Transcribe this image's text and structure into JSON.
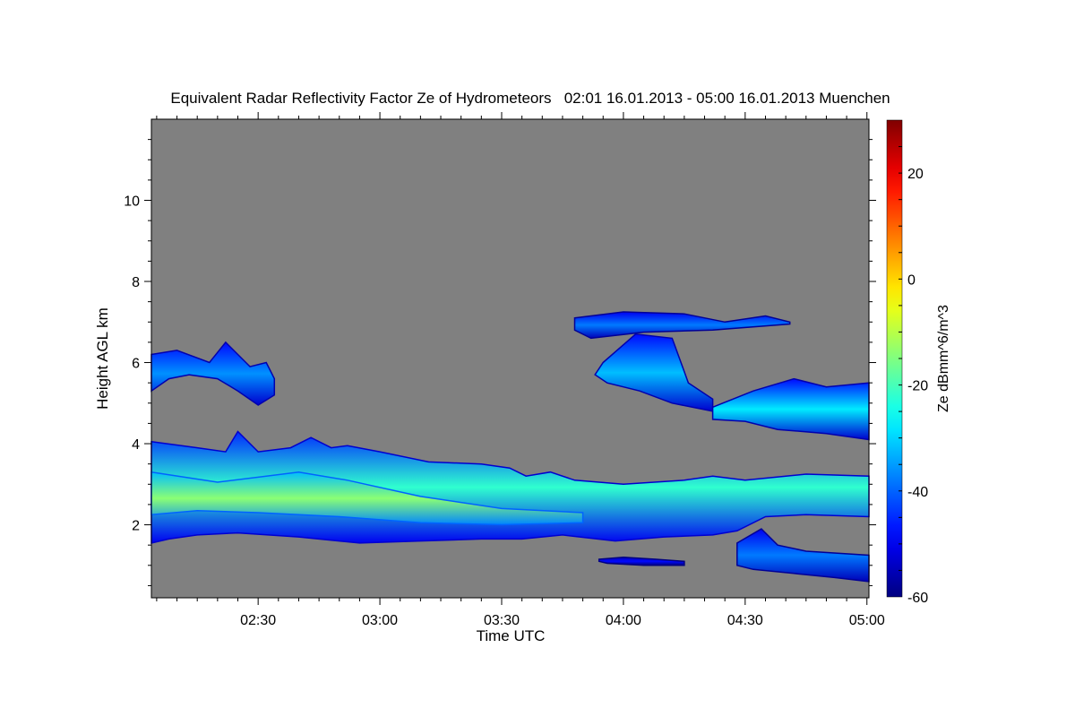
{
  "chart_data": {
    "type": "heatmap",
    "title": "Equivalent Radar Reflectivity Factor Ze of Hydrometeors   02:01 16.01.2013 - 05:00 16.01.2013 Muenchen",
    "xlabel": "Time UTC",
    "ylabel": "Height AGL km",
    "x_unit": "minutes since 00:00 UTC",
    "xlim": [
      123.7,
      300.5
    ],
    "ylim": [
      0.2,
      12.0
    ],
    "x_ticks": [
      {
        "v": 150,
        "label": "02:30"
      },
      {
        "v": 180,
        "label": "03:00"
      },
      {
        "v": 210,
        "label": "03:30"
      },
      {
        "v": 240,
        "label": "04:00"
      },
      {
        "v": 270,
        "label": "04:30"
      },
      {
        "v": 300,
        "label": "05:00"
      }
    ],
    "y_ticks": [
      {
        "v": 2,
        "label": "2"
      },
      {
        "v": 4,
        "label": "4"
      },
      {
        "v": 6,
        "label": "6"
      },
      {
        "v": 8,
        "label": "8"
      },
      {
        "v": 10,
        "label": "10"
      }
    ],
    "background_no_signal": "#808080",
    "colorbar": {
      "label": "Ze dBmm^6/m^3",
      "range": [
        -60,
        30
      ],
      "ticks": [
        {
          "v": -60,
          "label": "-60"
        },
        {
          "v": -40,
          "label": "-40"
        },
        {
          "v": -20,
          "label": "-20"
        },
        {
          "v": 0,
          "label": "0"
        },
        {
          "v": 20,
          "label": "20"
        }
      ],
      "colormap": "jet"
    },
    "regions": [
      {
        "name": "lower-main-layer",
        "ze_edge": -45,
        "ze_core": -22,
        "top": [
          [
            123.7,
            4.05
          ],
          [
            135,
            3.9
          ],
          [
            142,
            3.8
          ],
          [
            145,
            4.3
          ],
          [
            150,
            3.8
          ],
          [
            158,
            3.9
          ],
          [
            163,
            4.15
          ],
          [
            168,
            3.9
          ],
          [
            172,
            3.95
          ],
          [
            180,
            3.8
          ],
          [
            192,
            3.55
          ],
          [
            205,
            3.5
          ],
          [
            212,
            3.4
          ],
          [
            216,
            3.2
          ],
          [
            222,
            3.3
          ],
          [
            228,
            3.1
          ],
          [
            240,
            3.0
          ],
          [
            255,
            3.1
          ],
          [
            262,
            3.2
          ],
          [
            270,
            3.1
          ],
          [
            285,
            3.25
          ],
          [
            300.5,
            3.2
          ]
        ],
        "bottom": [
          [
            300.5,
            2.2
          ],
          [
            285,
            2.25
          ],
          [
            275,
            2.2
          ],
          [
            268,
            1.85
          ],
          [
            262,
            1.75
          ],
          [
            250,
            1.7
          ],
          [
            238,
            1.6
          ],
          [
            225,
            1.75
          ],
          [
            215,
            1.65
          ],
          [
            205,
            1.65
          ],
          [
            190,
            1.6
          ],
          [
            175,
            1.55
          ],
          [
            160,
            1.7
          ],
          [
            145,
            1.8
          ],
          [
            135,
            1.75
          ],
          [
            128,
            1.65
          ],
          [
            123.7,
            1.55
          ]
        ]
      },
      {
        "name": "lower-core",
        "ze_edge": -32,
        "ze_core": -14,
        "top": [
          [
            123.7,
            3.3
          ],
          [
            140,
            3.05
          ],
          [
            160,
            3.3
          ],
          [
            172,
            3.1
          ],
          [
            190,
            2.7
          ],
          [
            210,
            2.4
          ],
          [
            230,
            2.3
          ]
        ],
        "bottom": [
          [
            230,
            2.05
          ],
          [
            210,
            2.0
          ],
          [
            190,
            2.05
          ],
          [
            170,
            2.2
          ],
          [
            150,
            2.3
          ],
          [
            135,
            2.35
          ],
          [
            123.7,
            2.25
          ]
        ]
      },
      {
        "name": "low-patch-east",
        "ze_edge": -50,
        "ze_core": -38,
        "top": [
          [
            268,
            1.55
          ],
          [
            274,
            1.9
          ],
          [
            278,
            1.5
          ],
          [
            285,
            1.35
          ],
          [
            300.5,
            1.25
          ]
        ],
        "bottom": [
          [
            300.5,
            0.6
          ],
          [
            292,
            0.7
          ],
          [
            282,
            0.8
          ],
          [
            272,
            0.9
          ],
          [
            268,
            1.0
          ]
        ]
      },
      {
        "name": "low-patch-small",
        "ze_edge": -55,
        "ze_core": -48,
        "top": [
          [
            234,
            1.15
          ],
          [
            240,
            1.2
          ],
          [
            248,
            1.15
          ],
          [
            255,
            1.1
          ]
        ],
        "bottom": [
          [
            255,
            1.0
          ],
          [
            245,
            1.0
          ],
          [
            236,
            1.05
          ],
          [
            234,
            1.1
          ]
        ]
      },
      {
        "name": "upper-west-cloud",
        "ze_edge": -48,
        "ze_core": -36,
        "top": [
          [
            123.7,
            6.2
          ],
          [
            130,
            6.3
          ],
          [
            138,
            6.0
          ],
          [
            142,
            6.5
          ],
          [
            148,
            5.9
          ],
          [
            152,
            6.0
          ],
          [
            154,
            5.6
          ]
        ],
        "bottom": [
          [
            154,
            5.2
          ],
          [
            150,
            4.95
          ],
          [
            145,
            5.3
          ],
          [
            140,
            5.6
          ],
          [
            133,
            5.7
          ],
          [
            128,
            5.6
          ],
          [
            123.7,
            5.3
          ]
        ]
      },
      {
        "name": "upper-east-band",
        "ze_edge": -50,
        "ze_core": -38,
        "top": [
          [
            228,
            7.1
          ],
          [
            240,
            7.25
          ],
          [
            255,
            7.2
          ],
          [
            265,
            7.0
          ],
          [
            275,
            7.15
          ],
          [
            281,
            7.0
          ]
        ],
        "bottom": [
          [
            281,
            6.95
          ],
          [
            262,
            6.8
          ],
          [
            245,
            6.75
          ],
          [
            232,
            6.6
          ],
          [
            228,
            6.8
          ]
        ]
      },
      {
        "name": "upper-east-fallstreak",
        "ze_edge": -48,
        "ze_core": -32,
        "top": [
          [
            235,
            6.0
          ],
          [
            243,
            6.7
          ],
          [
            252,
            6.6
          ],
          [
            256,
            5.5
          ],
          [
            262,
            5.1
          ]
        ],
        "bottom": [
          [
            262,
            4.8
          ],
          [
            252,
            5.0
          ],
          [
            244,
            5.3
          ],
          [
            236,
            5.5
          ],
          [
            233,
            5.7
          ]
        ]
      },
      {
        "name": "upper-east-layer",
        "ze_edge": -48,
        "ze_core": -28,
        "top": [
          [
            262,
            4.9
          ],
          [
            272,
            5.3
          ],
          [
            282,
            5.6
          ],
          [
            290,
            5.4
          ],
          [
            300.5,
            5.5
          ]
        ],
        "bottom": [
          [
            300.5,
            4.1
          ],
          [
            290,
            4.25
          ],
          [
            278,
            4.35
          ],
          [
            270,
            4.55
          ],
          [
            262,
            4.6
          ]
        ]
      }
    ]
  }
}
